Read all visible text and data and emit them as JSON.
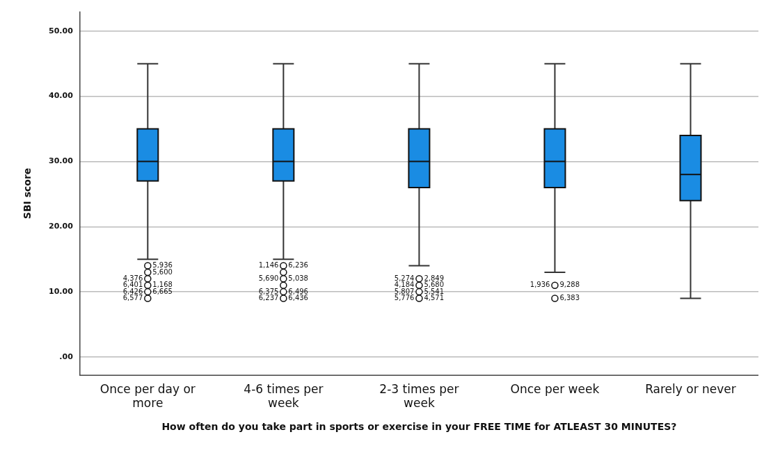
{
  "chart_data": {
    "type": "box",
    "xlabel": "How often do you take part in sports or exercise in your FREE TIME for ATLEAST 30 MINUTES?",
    "ylabel": "SBI score",
    "categories": [
      "Once per day or more",
      "4-6 times per week",
      "2-3 times per week",
      "Once per week",
      "Rarely or never"
    ],
    "series": [
      {
        "color": "#1a8ce3",
        "boxes": [
          {
            "low": 15,
            "q1": 27,
            "median": 30,
            "q3": 35,
            "high": 45
          },
          {
            "low": 15,
            "q1": 27,
            "median": 30,
            "q3": 35,
            "high": 45
          },
          {
            "low": 14,
            "q1": 26,
            "median": 30,
            "q3": 35,
            "high": 45
          },
          {
            "low": 13,
            "q1": 26,
            "median": 30,
            "q3": 35,
            "high": 45
          },
          {
            "low": 9,
            "q1": 24,
            "median": 28,
            "q3": 34,
            "high": 45
          }
        ]
      },
      {
        "type": "scatter",
        "color": "#111111",
        "x": [
          "Once per day or more",
          "Once per day or more",
          "Once per day or more",
          "Once per day or more",
          "Once per day or more",
          "Once per day or more",
          "4-6 times per week",
          "4-6 times per week",
          "4-6 times per week",
          "4-6 times per week",
          "4-6 times per week",
          "4-6 times per week",
          "2-3 times per week",
          "2-3 times per week",
          "2-3 times per week",
          "2-3 times per week",
          "Once per week",
          "Once per week"
        ],
        "values": [
          14,
          13,
          12,
          11,
          10,
          9,
          14,
          13,
          12,
          11,
          10,
          9,
          12,
          11,
          10,
          9,
          11,
          9
        ]
      }
    ],
    "ylim": [
      -2.8,
      53
    ],
    "yticks": [
      {
        "value": 0,
        "label": ".00"
      },
      {
        "value": 10,
        "label": "10.00"
      },
      {
        "value": 20,
        "label": "20.00"
      },
      {
        "value": 30,
        "label": "30.00"
      },
      {
        "value": 40,
        "label": "40.00"
      },
      {
        "value": 50,
        "label": "50.00"
      }
    ],
    "grid": "y",
    "legend": false,
    "marker": "circle",
    "annotations": [
      {
        "text": "5,936",
        "x": "Once per day or more",
        "y": 14
      },
      {
        "text": "4,376",
        "x": "Once per day or more",
        "y": 12
      },
      {
        "text": "5,600",
        "x": "Once per day or more",
        "y": 13
      },
      {
        "text": "6,401",
        "x": "Once per day or more",
        "y": 11
      },
      {
        "text": "1,168",
        "x": "Once per day or more",
        "y": 11
      },
      {
        "text": "6,577",
        "x": "Once per day or more",
        "y": 9
      },
      {
        "text": "6,665",
        "x": "Once per day or more",
        "y": 10
      },
      {
        "text": "6,426",
        "x": "Once per day or more",
        "y": 10
      },
      {
        "text": "6,236",
        "x": "4-6 times per week",
        "y": 14
      },
      {
        "text": "1,146",
        "x": "4-6 times per week",
        "y": 14
      },
      {
        "text": "5,038",
        "x": "4-6 times per week",
        "y": 12
      },
      {
        "text": "5,690",
        "x": "4-6 times per week",
        "y": 12
      },
      {
        "text": "6,496",
        "x": "4-6 times per week",
        "y": 10
      },
      {
        "text": "6,375",
        "x": "4-6 times per week",
        "y": 10
      },
      {
        "text": "6,436",
        "x": "4-6 times per week",
        "y": 9
      },
      {
        "text": "6,237",
        "x": "4-6 times per week",
        "y": 9
      },
      {
        "text": "2,849",
        "x": "2-3 times per week",
        "y": 12
      },
      {
        "text": "5,274",
        "x": "2-3 times per week",
        "y": 12
      },
      {
        "text": "5,680",
        "x": "2-3 times per week",
        "y": 11
      },
      {
        "text": "4,184",
        "x": "2-3 times per week",
        "y": 11
      },
      {
        "text": "5,541",
        "x": "2-3 times per week",
        "y": 10
      },
      {
        "text": "5,807",
        "x": "2-3 times per week",
        "y": 10
      },
      {
        "text": "4,571",
        "x": "2-3 times per week",
        "y": 9
      },
      {
        "text": "5,776",
        "x": "2-3 times per week",
        "y": 9
      },
      {
        "text": "9,288",
        "x": "Once per week",
        "y": 11
      },
      {
        "text": "1,936",
        "x": "Once per week",
        "y": 11
      },
      {
        "text": "6,383",
        "x": "Once per week",
        "y": 9
      }
    ]
  }
}
